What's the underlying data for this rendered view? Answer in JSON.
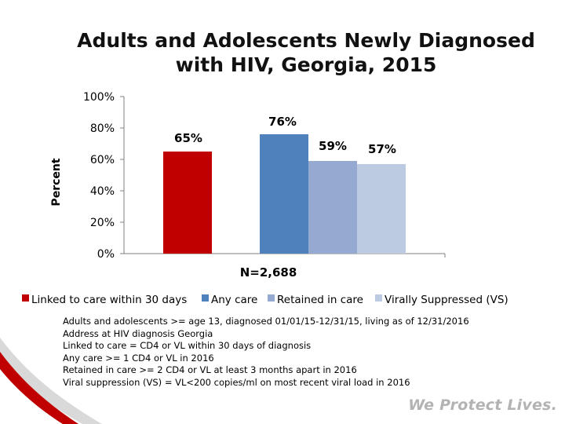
{
  "title": {
    "line1": "Adults and Adolescents Newly Diagnosed",
    "line2": "with HIV, Georgia, 2015"
  },
  "chart_data": {
    "type": "bar",
    "title": "Adults and Adolescents Newly Diagnosed with HIV, Georgia, 2015",
    "ylabel": "Percent",
    "xlabel": "N=2,688",
    "ylim": [
      0,
      100
    ],
    "yticks": [
      0,
      20,
      40,
      60,
      80,
      100
    ],
    "ytick_labels": [
      "0%",
      "20%",
      "40%",
      "60%",
      "80%",
      "100%"
    ],
    "grid": false,
    "legend_position": "bottom",
    "series": [
      {
        "name": "Linked to care within 30 days",
        "value": 65,
        "label": "65%",
        "color": "#c00000"
      },
      {
        "name": "Any care",
        "value": 76,
        "label": "76%",
        "color": "#4f81bd"
      },
      {
        "name": "Retained in care",
        "value": 59,
        "label": "59%",
        "color": "#95a9d1"
      },
      {
        "name": "Virally Suppressed (VS)",
        "value": 57,
        "label": "57%",
        "color": "#bccbe2"
      }
    ]
  },
  "footnotes": [
    "Adults and adolescents >= age 13, diagnosed 01/01/15-12/31/15, living as of 12/31/2016",
    "Address at HIV diagnosis Georgia",
    "Linked  to care = CD4 or VL within 30 days of diagnosis",
    "Any care >= 1 CD4 or VL in 2016",
    "Retained in care >= 2 CD4 or VL at least 3 months apart in 2016",
    "Viral suppression (VS) = VL<200 copies/ml on most recent viral load in 2016"
  ],
  "tagline": "We Protect Lives.",
  "colors": {
    "accent_red": "#c00000",
    "swoosh_gray": "#d9d9d9"
  }
}
